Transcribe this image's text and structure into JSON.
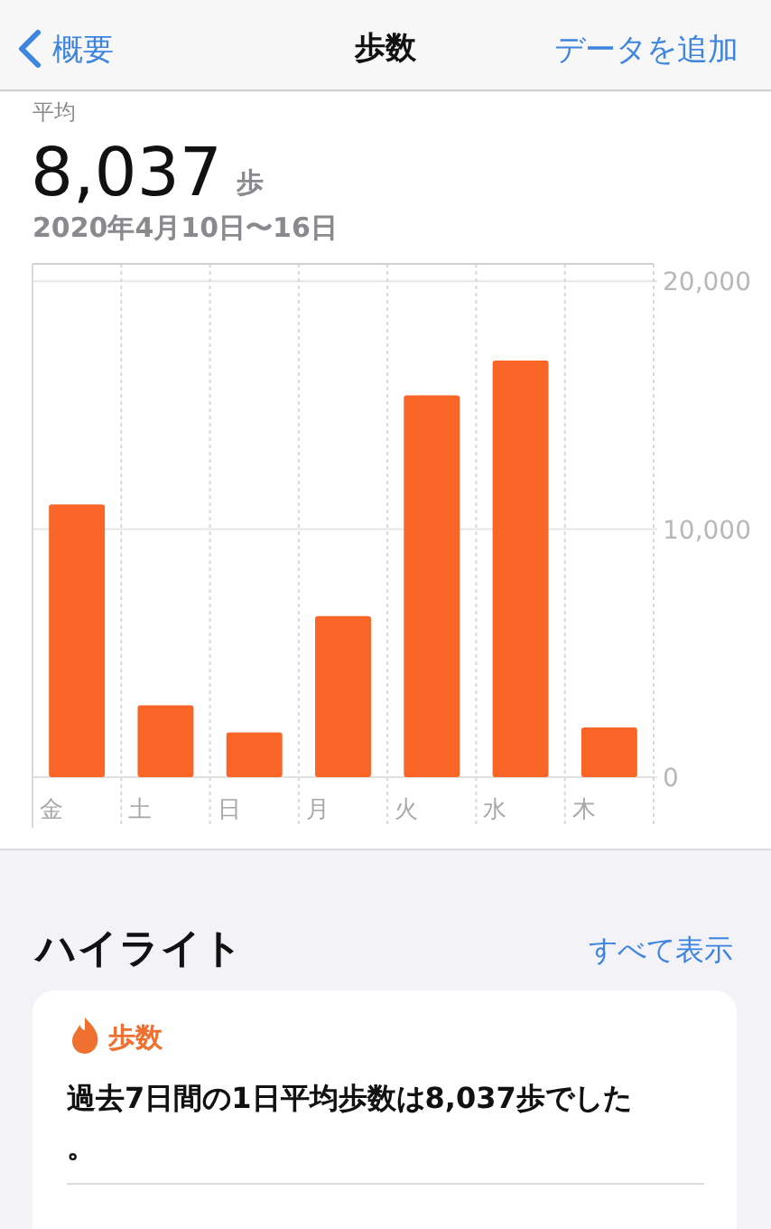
{
  "chart_data": {
    "type": "bar",
    "title": "歩数",
    "annotations": [
      "概要",
      "データを追加",
      "平均",
      "8,037",
      "歩",
      "2020年4月10日〜16日",
      "ハイライト",
      "すべて表示",
      "歩数",
      "過去7日間の1日平均歩数は8,037歩でした。"
    ],
    "categories": [
      "金",
      "土",
      "日",
      "月",
      "火",
      "水",
      "木"
    ],
    "values": [
      11000,
      2900,
      1800,
      6500,
      15400,
      16800,
      2000
    ],
    "color": "#f96526",
    "ylim": [
      0,
      20700
    ],
    "yticks": [
      0,
      {
        "value": 10000,
        "label": "10,000"
      },
      {
        "value": 20000,
        "label": "20,000"
      }
    ],
    "grid": true
  }
}
